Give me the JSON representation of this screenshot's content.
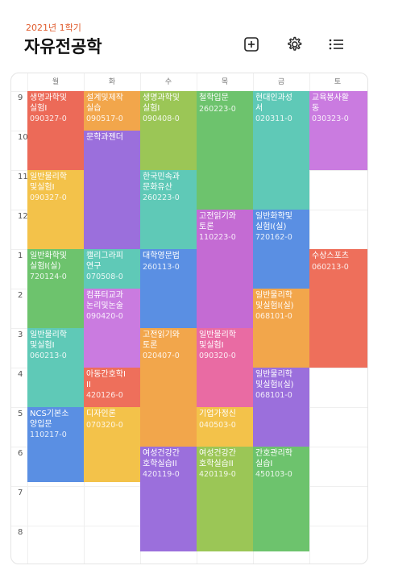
{
  "header": {
    "semester": "2021년 1학기",
    "title": "자유전공학"
  },
  "icons": {
    "add": "plus-square-icon",
    "settings": "gear-icon",
    "list": "list-icon"
  },
  "days": [
    "월",
    "화",
    "수",
    "목",
    "금",
    "토"
  ],
  "hours": [
    "9",
    "10",
    "11",
    "12",
    "1",
    "2",
    "3",
    "4",
    "5",
    "6",
    "7",
    "8"
  ],
  "courses": [
    {
      "name": "생명과학및\n실험I",
      "code": "090327-0"
    },
    {
      "name": "일반물리학\n및실험I",
      "code": "090327-0"
    },
    {
      "name": "일반화학및\n실험I(실)",
      "code": "720124-0"
    },
    {
      "name": "일반물리학\n및실험I",
      "code": "060213-0"
    },
    {
      "name": "NCS기본소\n양입문",
      "code": "110217-0"
    },
    {
      "name": "설계및제작\n실습",
      "code": "090517-0"
    },
    {
      "name": "문학과젠더",
      "code": ""
    },
    {
      "name": "캘리그라피\n연구",
      "code": "070508-0"
    },
    {
      "name": "컴퓨터교과\n논리및논술",
      "code": "090420-0"
    },
    {
      "name": "아동간호학I\nII",
      "code": "420126-0"
    },
    {
      "name": "디자인론",
      "code": "070320-0"
    },
    {
      "name": "생명과학및\n실험I",
      "code": "090408-0"
    },
    {
      "name": "한국민속과\n문화유산",
      "code": "260223-0"
    },
    {
      "name": "대학영문법",
      "code": "260113-0"
    },
    {
      "name": "고전읽기와\n토론",
      "code": "020407-0"
    },
    {
      "name": "여성건강간\n호학실습II",
      "code": "420119-0"
    },
    {
      "name": "철학입문",
      "code": "260223-0"
    },
    {
      "name": "고전읽기와\n토론",
      "code": "110223-0"
    },
    {
      "name": "일반물리학\n및실험I",
      "code": "090320-0"
    },
    {
      "name": "기업가정신",
      "code": "040503-0"
    },
    {
      "name": "여성건강간\n호학실습II",
      "code": "420119-0"
    },
    {
      "name": "현대인과성\n서",
      "code": "020311-0"
    },
    {
      "name": "일반화학및\n실험I(실)",
      "code": "720162-0"
    },
    {
      "name": "일반물리학\n및실험I(실)",
      "code": "068101-0"
    },
    {
      "name": "일반물리학\n및실험I(실)",
      "code": "068101-0"
    },
    {
      "name": "간호관리학\n실습I",
      "code": "450103-0"
    },
    {
      "name": "교육봉사활\n동",
      "code": "030323-0"
    },
    {
      "name": "수상스포츠",
      "code": "060213-0"
    }
  ]
}
